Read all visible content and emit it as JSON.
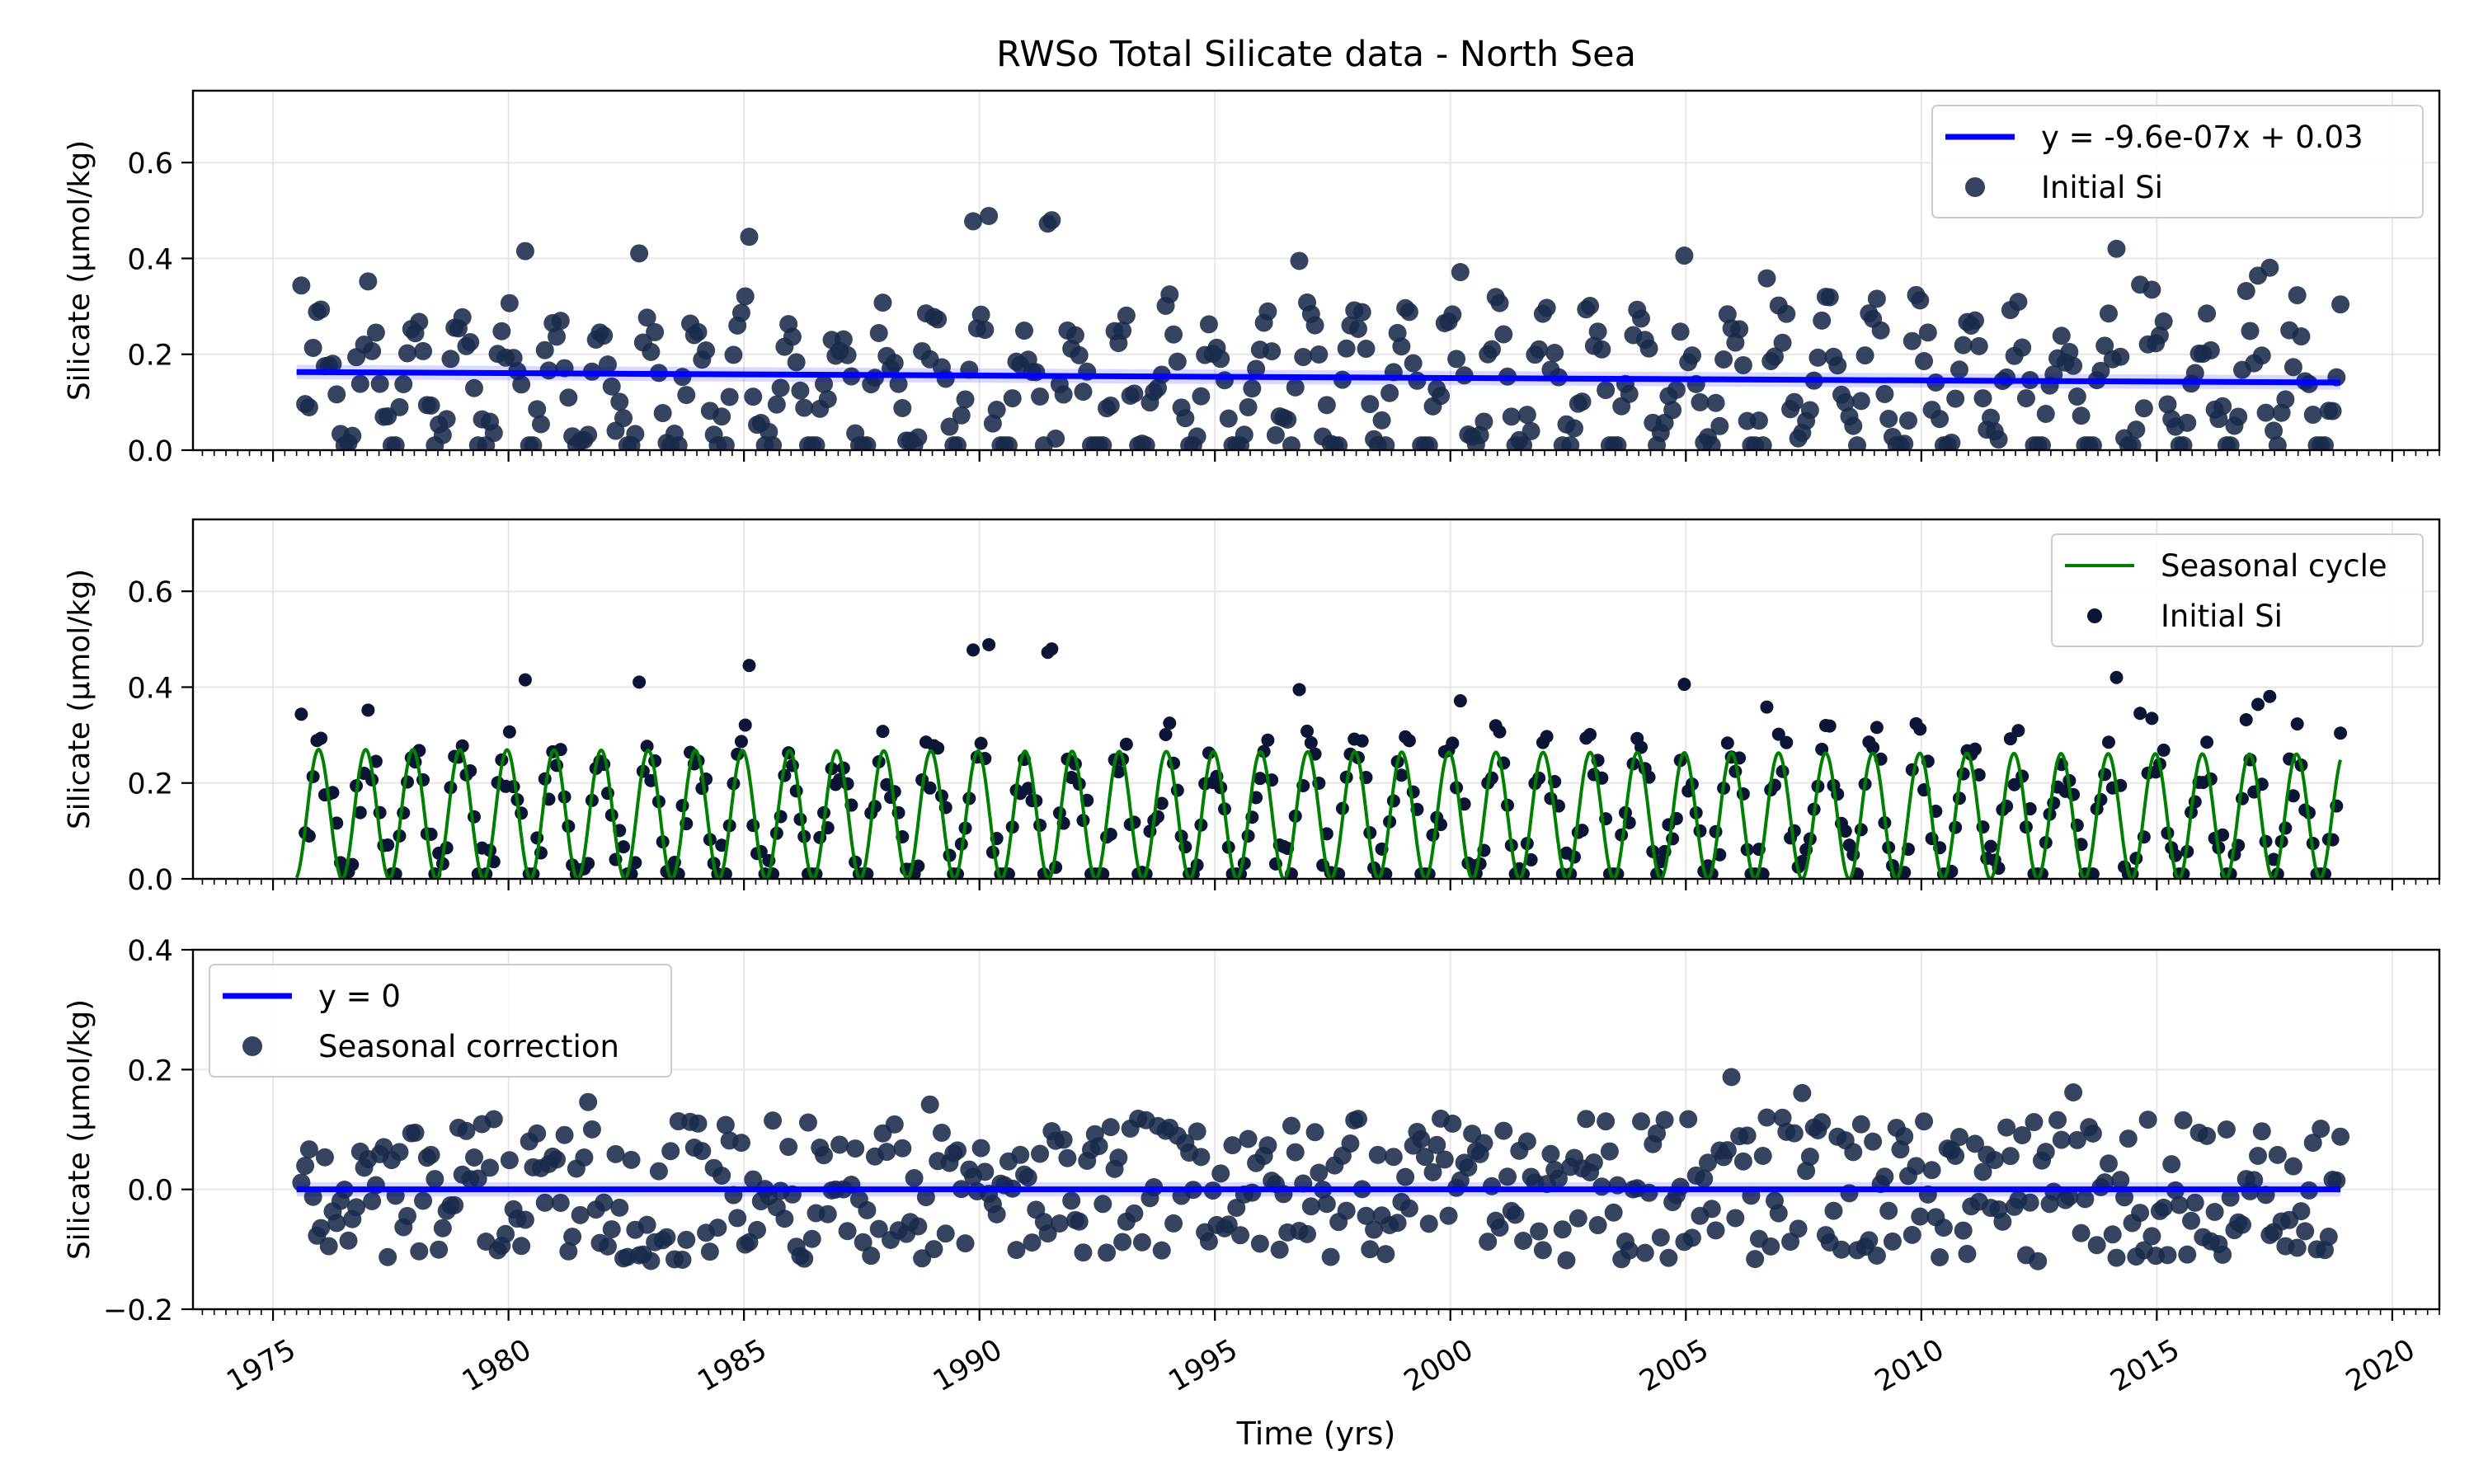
{
  "figure": {
    "title": "RWSo Total Silicate data - North Sea",
    "xlabel": "Time (yrs)"
  },
  "colors": {
    "points": "#1a2a4a",
    "points_dark": "#0b1535",
    "trend": "#0000ff",
    "seasonal": "#008000",
    "grid": "#e6e6e6"
  },
  "chart_data": [
    {
      "type": "scatter",
      "panel": "top",
      "ylabel": "Silicate (µmol/kg)",
      "xlim": [
        1973.3,
        2021.0
      ],
      "ylim": [
        0,
        0.75
      ],
      "yticks": [
        0.0,
        0.2,
        0.4,
        0.6
      ],
      "xticks": [
        1975,
        1980,
        1985,
        1990,
        1995,
        2000,
        2005,
        2010,
        2015,
        2020
      ],
      "grid": true,
      "legend_position": "top-right",
      "series": [
        {
          "name": "y = -9.6e-07x + 0.03",
          "kind": "line",
          "x": [
            1975.5,
            2018.9
          ],
          "y": [
            0.163,
            0.141
          ],
          "color": "#0000ff",
          "band": 0.015
        },
        {
          "name": "Initial Si",
          "kind": "scatter",
          "x_start": 1975.6,
          "x_end": 2018.9,
          "count": 520,
          "y_range": [
            0.01,
            0.5
          ],
          "y_peaks": [
            0.36,
            0.39,
            0.43,
            0.44,
            0.46,
            0.42,
            0.5,
            0.48,
            0.41,
            0.43,
            0.38,
            0.41,
            0.42,
            0.39,
            0.34,
            0.48,
            0.43,
            0.35,
            0.4
          ],
          "color": "#1a2a4a"
        }
      ]
    },
    {
      "type": "line",
      "panel": "middle",
      "ylabel": "Silicate (µmol/kg)",
      "xlim": [
        1973.3,
        2021.0
      ],
      "ylim": [
        0,
        0.75
      ],
      "yticks": [
        0.0,
        0.2,
        0.4,
        0.6
      ],
      "grid": true,
      "legend_position": "top-right",
      "series": [
        {
          "name": "Seasonal cycle",
          "kind": "sine",
          "x_start": 1975.5,
          "x_end": 2018.9,
          "amplitude": 0.135,
          "offset": 0.135,
          "amplitude_end": 0.13,
          "offset_end": 0.13,
          "period": 1,
          "color": "#008000"
        },
        {
          "name": "Initial Si",
          "kind": "scatter",
          "same_as": "top",
          "color": "#0b1535"
        }
      ]
    },
    {
      "type": "scatter",
      "panel": "bottom",
      "ylabel": "Silicate (µmol/kg)",
      "xlim": [
        1973.3,
        2021.0
      ],
      "ylim": [
        -0.2,
        0.4
      ],
      "yticks": [
        -0.2,
        0.0,
        0.2,
        0.4
      ],
      "ytick_labels": [
        "−0.2",
        "0.0",
        "0.2",
        "0.4"
      ],
      "grid": true,
      "legend_position": "top-left",
      "series": [
        {
          "name": "y = 0",
          "kind": "line",
          "x": [
            1975.5,
            2018.9
          ],
          "y": [
            0.0,
            0.0
          ],
          "color": "#0000ff",
          "band": 0.012
        },
        {
          "name": "Seasonal correction",
          "kind": "scatter",
          "x_start": 1975.6,
          "x_end": 2018.9,
          "count": 520,
          "y_range": [
            -0.17,
            0.23
          ],
          "color": "#1a2a4a"
        }
      ]
    }
  ]
}
